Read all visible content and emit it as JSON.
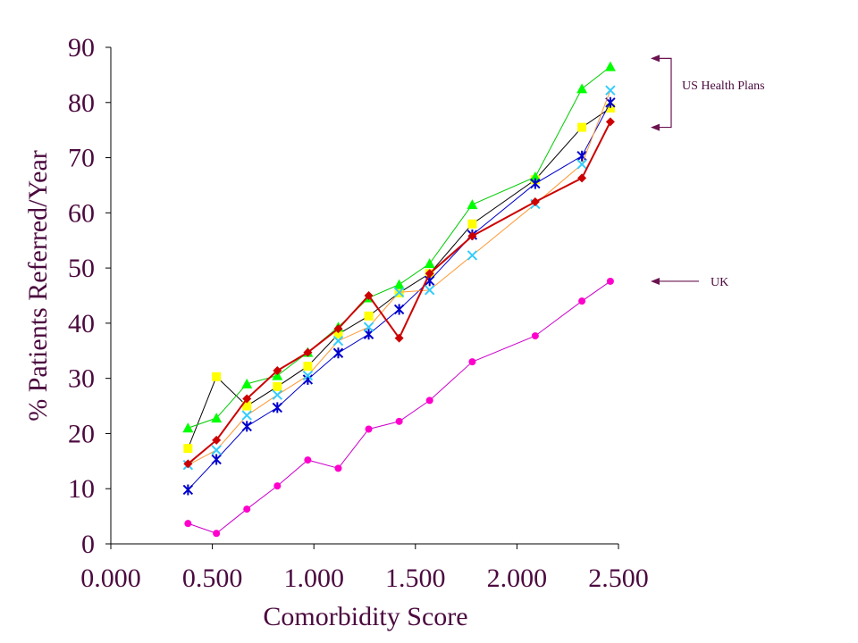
{
  "chart_data": {
    "type": "line",
    "xlabel": "Comorbidity Score",
    "ylabel": "% Patients Referred/Year",
    "xlim": [
      0,
      2.5
    ],
    "ylim": [
      0,
      90
    ],
    "x_ticks": [
      "0.000",
      "0.500",
      "1.000",
      "1.500",
      "2.000",
      "2.500"
    ],
    "y_ticks": [
      "0",
      "10",
      "20",
      "30",
      "40",
      "50",
      "60",
      "70",
      "80",
      "90"
    ],
    "grid": false,
    "x": [
      0.38,
      0.52,
      0.67,
      0.82,
      0.97,
      1.12,
      1.27,
      1.42,
      1.57,
      1.78,
      2.09,
      2.32,
      2.46
    ],
    "series": [
      {
        "color": "#000000",
        "marker_color": "#ffff00",
        "marker": "square",
        "values": [
          17.3,
          30.3,
          25,
          28.5,
          32.2,
          38,
          41.3,
          45.5,
          49,
          58,
          66,
          75.5,
          79
        ]
      },
      {
        "color": "#00cc00",
        "marker_color": "#00ff00",
        "marker": "triangle",
        "values": [
          21,
          22.8,
          29,
          30.5,
          34.7,
          39.3,
          44.6,
          47,
          50.8,
          61.5,
          66.5,
          82.5,
          86.5
        ]
      },
      {
        "color": "#0000cc",
        "marker_color": "#0000cc",
        "marker": "star",
        "values": [
          9.8,
          15.3,
          21.3,
          24.7,
          29.8,
          34.6,
          38,
          42.5,
          47.7,
          56,
          65.3,
          70.3,
          80
        ]
      },
      {
        "color": "#ff9933",
        "marker_color": "#33ccff",
        "marker": "x",
        "values": [
          14.3,
          17,
          23.3,
          27,
          30.5,
          36.8,
          39.3,
          45.6,
          46,
          52.3,
          61.6,
          68.8,
          82.2
        ]
      },
      {
        "color": "#cc0000",
        "marker_color": "#cc0000",
        "marker": "diamond",
        "values": [
          14.5,
          18.8,
          26.3,
          31.4,
          34.7,
          39,
          45,
          37.3,
          49,
          55.8,
          62,
          66.3,
          76.5
        ]
      },
      {
        "color": "#cc00cc",
        "marker_color": "#ff00cc",
        "marker": "circle",
        "values": [
          3.7,
          1.9,
          6.3,
          10.5,
          15.2,
          13.7,
          20.8,
          22.2,
          26,
          33,
          37.7,
          44,
          47.6
        ]
      }
    ],
    "annotations": [
      {
        "id": "us",
        "text": "US Health Plans",
        "y_top": 88,
        "y_bottom": 75.5
      },
      {
        "id": "uk",
        "text": "UK",
        "y": 47.6
      }
    ]
  }
}
